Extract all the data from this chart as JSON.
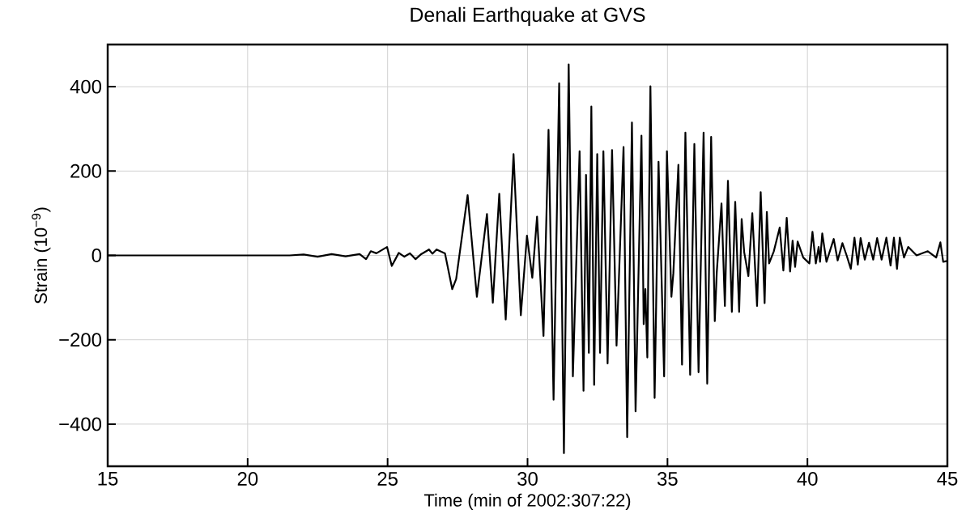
{
  "chart_data": {
    "type": "line",
    "title": "Denali Earthquake at GVS",
    "xlabel": "Time (min of 2002:307:22)",
    "ylabel": "Strain (10$^{−9}$)",
    "xlim": [
      15,
      45
    ],
    "ylim": [
      -500,
      500
    ],
    "xticks": [
      15,
      20,
      25,
      30,
      35,
      40,
      45
    ],
    "yticks": [
      {
        "value": -400,
        "label": "−400"
      },
      {
        "value": -200,
        "label": "−200"
      },
      0,
      200,
      400
    ],
    "grid": true,
    "series": [
      {
        "color": "#000000",
        "x": [
          15,
          18,
          21.5,
          22,
          22.5,
          23,
          23.5,
          24,
          24.23,
          24.4,
          24.6,
          24.98,
          25.15,
          25.4,
          25.6,
          25.8,
          26.0,
          26.2,
          26.48,
          26.6,
          26.75,
          27.05,
          27.31,
          27.45,
          27.86,
          28.19,
          28.55,
          28.76,
          28.99,
          29.22,
          29.5,
          29.76,
          29.98,
          30.17,
          30.34,
          30.57,
          30.75,
          30.93,
          31.13,
          31.3,
          31.47,
          31.62,
          31.86,
          32.0,
          32.09,
          32.19,
          32.28,
          32.38,
          32.49,
          32.59,
          32.71,
          32.86,
          33.02,
          33.18,
          33.43,
          33.56,
          33.73,
          33.86,
          34.07,
          34.15,
          34.21,
          34.28,
          34.39,
          34.54,
          34.68,
          34.88,
          34.98,
          35.14,
          35.21,
          35.39,
          35.52,
          35.64,
          35.81,
          35.96,
          36.11,
          36.29,
          36.42,
          36.56,
          36.69,
          36.76,
          36.93,
          37.05,
          37.16,
          37.3,
          37.42,
          37.56,
          37.65,
          37.74,
          37.89,
          38.03,
          38.2,
          38.33,
          38.47,
          38.55,
          38.63,
          38.8,
          39.01,
          39.14,
          39.26,
          39.38,
          39.47,
          39.56,
          39.65,
          39.85,
          40.07,
          40.18,
          40.3,
          40.4,
          40.45,
          40.53,
          40.68,
          40.94,
          41.08,
          41.25,
          41.4,
          41.55,
          41.68,
          41.8,
          41.9,
          42.05,
          42.2,
          42.35,
          42.49,
          42.65,
          42.82,
          42.97,
          43.09,
          43.2,
          43.3,
          43.45,
          43.6,
          43.9,
          44.3,
          44.6,
          44.75,
          44.85,
          45
        ],
        "values": [
          0,
          0,
          0,
          2,
          -3,
          3,
          -2,
          3,
          -9,
          10,
          5,
          20,
          -25,
          6,
          -3,
          5,
          -9,
          3,
          14,
          4,
          14,
          5,
          -80,
          -56,
          143,
          -98,
          98,
          -112,
          146,
          -152,
          240,
          -142,
          47,
          -53,
          92,
          -191,
          298,
          -342,
          408,
          -469,
          453,
          -287,
          247,
          -321,
          191,
          -231,
          353,
          -307,
          240,
          -231,
          247,
          -256,
          250,
          -214,
          257,
          -431,
          315,
          -370,
          284,
          -163,
          -80,
          -242,
          401,
          -338,
          222,
          -287,
          247,
          -98,
          -42,
          215,
          -259,
          291,
          -283,
          264,
          -277,
          291,
          -304,
          281,
          -156,
          -41,
          123,
          -120,
          177,
          -134,
          127,
          -134,
          86,
          8,
          -49,
          100,
          -120,
          150,
          -113,
          103,
          -19,
          10,
          66,
          -36,
          89,
          -38,
          35,
          -27,
          33,
          -5,
          -19,
          56,
          -19,
          20,
          -15,
          52,
          -15,
          39,
          -12,
          29,
          0,
          -32,
          42,
          -22,
          41,
          -10,
          30,
          -10,
          41,
          -10,
          42,
          -24,
          42,
          -32,
          42,
          -5,
          20,
          0,
          10,
          -5,
          31,
          -15,
          -13
        ]
      }
    ]
  }
}
